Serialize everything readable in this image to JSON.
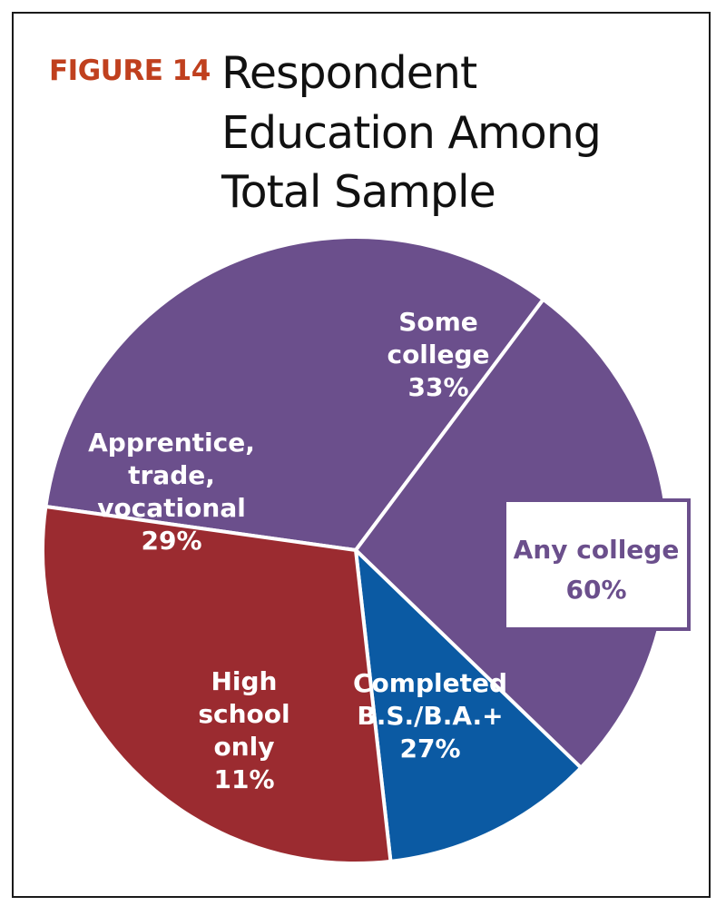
{
  "figure_label": "FIGURE 14",
  "title_lines": [
    "Respondent",
    "Education Among",
    "Total Sample"
  ],
  "chart_data": {
    "type": "pie",
    "title": "Respondent Education Among Total Sample",
    "slices": [
      {
        "label_lines": [
          "Some",
          "college",
          "33%"
        ],
        "value": 33,
        "color": "#6b4f8c"
      },
      {
        "label_lines": [
          "Completed",
          "B.S./B.A.+",
          "27%"
        ],
        "value": 27,
        "color": "#6b4f8c"
      },
      {
        "label_lines": [
          "High",
          "school",
          "only",
          "11%"
        ],
        "value": 11,
        "color": "#0b5aa3"
      },
      {
        "label_lines": [
          "Apprentice,",
          "trade,",
          "vocational",
          "29%"
        ],
        "value": 29,
        "color": "#9b2b30"
      }
    ],
    "callout": {
      "label_lines": [
        "Any college",
        "60%"
      ],
      "value": 60,
      "color": "#6b4f8c"
    }
  }
}
